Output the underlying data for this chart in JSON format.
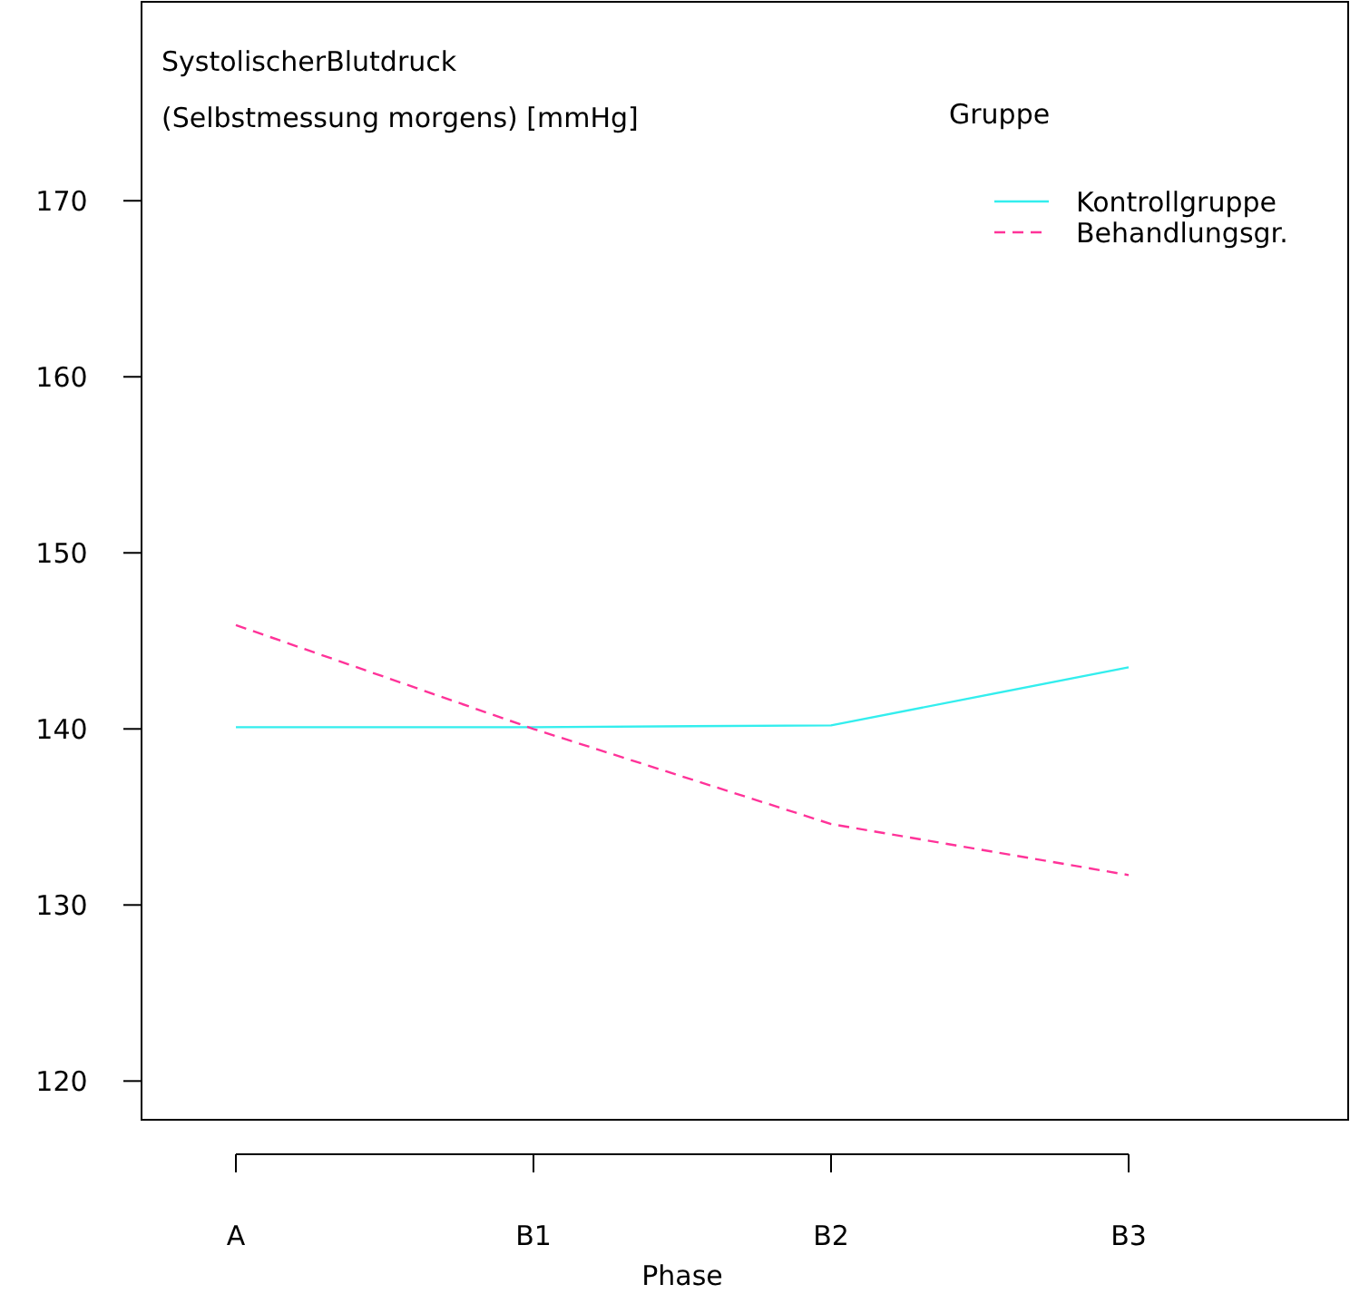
{
  "chart_data": {
    "type": "line",
    "title": "SystolischerBlutdruck",
    "subtitle": "(Selbstmessung morgens) [mmHg]",
    "xlabel": "Phase",
    "legend_title": "Gruppe",
    "categories": [
      "A",
      "B1",
      "B2",
      "B3"
    ],
    "series": [
      {
        "name": "Kontrollgruppe",
        "color": "#33eeee",
        "line_style": "solid",
        "values": [
          140.1,
          140.1,
          140.2,
          143.5
        ]
      },
      {
        "name": "Behandlungsgr.",
        "color": "#ff3399",
        "line_style": "dashed",
        "values": [
          145.9,
          140.0,
          134.6,
          131.7
        ]
      }
    ],
    "ylim": [
      117.8,
      181.3
    ],
    "yticks": [
      120,
      130,
      140,
      150,
      160,
      170
    ],
    "grid": false,
    "legend": "top right",
    "marker": "none"
  }
}
